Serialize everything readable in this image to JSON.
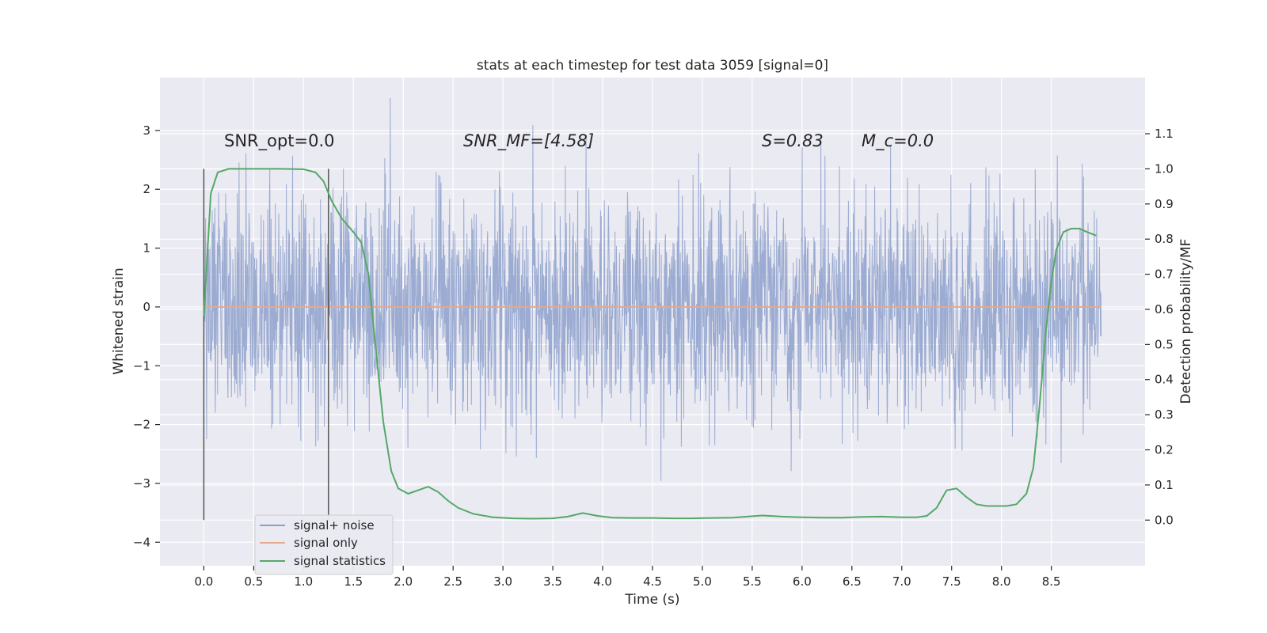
{
  "chart_data": {
    "type": "line",
    "title": "stats at each timestep for test data 3059 [signal=0]",
    "xlabel": "Time (s)",
    "ylabel": "Whitened strain",
    "y2label": "Detection probability/MF",
    "xlim": [
      -0.44,
      9.44
    ],
    "ylim": [
      -4.4,
      3.9
    ],
    "y2lim": [
      -0.13,
      1.26
    ],
    "xticks": [
      "0.0",
      "0.5",
      "1.0",
      "1.5",
      "2.0",
      "2.5",
      "3.0",
      "3.5",
      "4.0",
      "4.5",
      "5.0",
      "5.5",
      "6.0",
      "6.5",
      "7.0",
      "7.5",
      "8.0",
      "8.5"
    ],
    "yticks": [
      "3",
      "2",
      "1",
      "0",
      "−1",
      "−2",
      "−3",
      "−4"
    ],
    "y2ticks": [
      "1.1",
      "1.0",
      "0.9",
      "0.8",
      "0.7",
      "0.6",
      "0.5",
      "0.4",
      "0.3",
      "0.2",
      "0.1",
      "0.0"
    ],
    "grid": true,
    "legend_position": "lower-left",
    "annotations": [
      {
        "id": "snr_opt",
        "text": "SNR_opt=0.0",
        "x": 0.2,
        "y2": 1.0
      },
      {
        "id": "snr_mf",
        "text": "SNR_MF=[4.58]",
        "x": 2.6,
        "y2": 1.0
      },
      {
        "id": "s_val",
        "text": "S=0.83",
        "x": 5.6,
        "y2": 1.0
      },
      {
        "id": "mc_val",
        "text": "M_c=0.0",
        "x": 6.6,
        "y2": 1.0
      }
    ],
    "vertical_lines": [
      0.0,
      1.25
    ],
    "series": [
      {
        "name": "signal+ noise",
        "color": "#8da0cb",
        "axis": "left",
        "description_values": {
          "x_start": 0.0,
          "x_end": 9.0,
          "typical_range": [
            -1.5,
            1.5
          ],
          "peak_max": 3.55,
          "peak_min": -3.68
        }
      },
      {
        "name": "signal only",
        "color": "#e5a98f",
        "axis": "left",
        "x": [
          0.0,
          9.0
        ],
        "values": [
          0.0,
          0.0
        ]
      },
      {
        "name": "signal statistics",
        "color": "#55a868",
        "axis": "right",
        "x": [
          0.0,
          0.07,
          0.14,
          0.25,
          0.5,
          0.75,
          1.0,
          1.12,
          1.2,
          1.28,
          1.38,
          1.5,
          1.58,
          1.65,
          1.72,
          1.8,
          1.88,
          1.95,
          2.05,
          2.15,
          2.25,
          2.35,
          2.45,
          2.55,
          2.7,
          2.9,
          3.1,
          3.3,
          3.5,
          3.65,
          3.8,
          3.95,
          4.1,
          4.3,
          4.5,
          4.7,
          4.9,
          5.1,
          5.3,
          5.45,
          5.6,
          5.8,
          6.0,
          6.2,
          6.4,
          6.6,
          6.8,
          7.0,
          7.15,
          7.25,
          7.35,
          7.45,
          7.55,
          7.65,
          7.75,
          7.85,
          7.95,
          8.05,
          8.15,
          8.25,
          8.32,
          8.38,
          8.45,
          8.5,
          8.55,
          8.62,
          8.7,
          8.78,
          8.86,
          8.95
        ],
        "values": [
          0.58,
          0.93,
          0.99,
          1.0,
          1.0,
          1.0,
          0.999,
          0.99,
          0.965,
          0.91,
          0.86,
          0.82,
          0.79,
          0.7,
          0.5,
          0.28,
          0.14,
          0.09,
          0.075,
          0.085,
          0.095,
          0.08,
          0.055,
          0.035,
          0.018,
          0.008,
          0.005,
          0.004,
          0.005,
          0.01,
          0.02,
          0.012,
          0.007,
          0.006,
          0.006,
          0.005,
          0.005,
          0.006,
          0.007,
          0.01,
          0.013,
          0.01,
          0.008,
          0.007,
          0.007,
          0.009,
          0.01,
          0.008,
          0.008,
          0.012,
          0.035,
          0.085,
          0.09,
          0.065,
          0.045,
          0.04,
          0.04,
          0.04,
          0.045,
          0.075,
          0.15,
          0.32,
          0.55,
          0.68,
          0.77,
          0.82,
          0.83,
          0.83,
          0.82,
          0.81
        ]
      }
    ]
  }
}
